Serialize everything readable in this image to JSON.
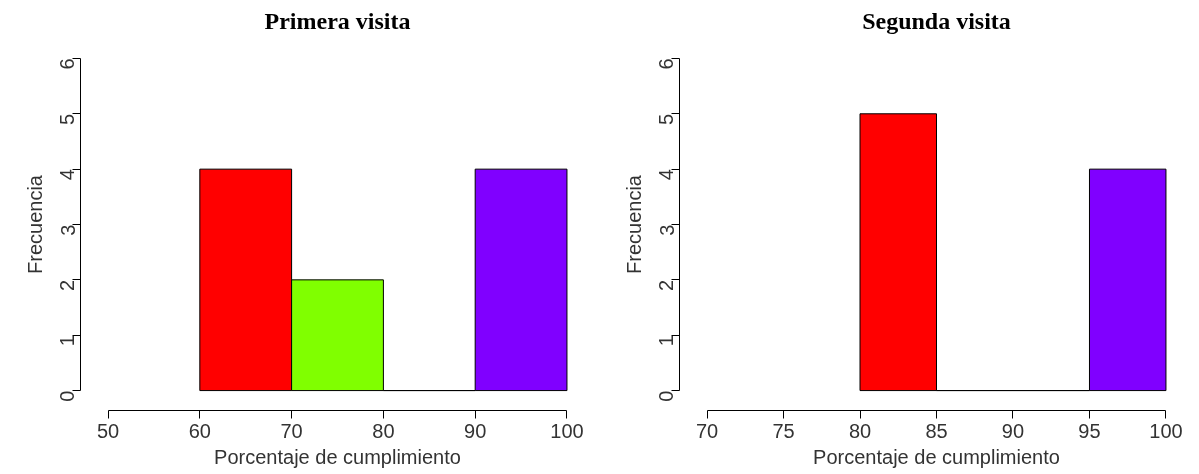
{
  "chart_data": [
    {
      "type": "histogram",
      "title": "Primera visita",
      "xlabel": "Porcentaje de cumplimiento",
      "ylabel": "Frecuencia",
      "bins": [
        60,
        70,
        80,
        90,
        100
      ],
      "values": [
        4,
        2,
        0,
        4
      ],
      "colors": [
        "#ff0000",
        "#80ff00",
        null,
        "#8000ff"
      ],
      "xlim": [
        50,
        100
      ],
      "xticks": [
        50,
        60,
        70,
        80,
        90,
        100
      ],
      "ylim": [
        0,
        6
      ],
      "yticks": [
        0,
        1,
        2,
        3,
        4,
        5,
        6
      ],
      "grid": false
    },
    {
      "type": "histogram",
      "title": "Segunda visita",
      "xlabel": "Porcentaje de cumplimiento",
      "ylabel": "Frecuencia",
      "bins": [
        80,
        85,
        90,
        95,
        100
      ],
      "values": [
        5,
        0,
        0,
        4
      ],
      "colors": [
        "#ff0000",
        null,
        null,
        "#8000ff"
      ],
      "xlim": [
        70,
        100
      ],
      "xticks": [
        70,
        75,
        80,
        85,
        90,
        95,
        100
      ],
      "ylim": [
        0,
        6
      ],
      "yticks": [
        0,
        1,
        2,
        3,
        4,
        5,
        6
      ],
      "grid": false
    }
  ]
}
